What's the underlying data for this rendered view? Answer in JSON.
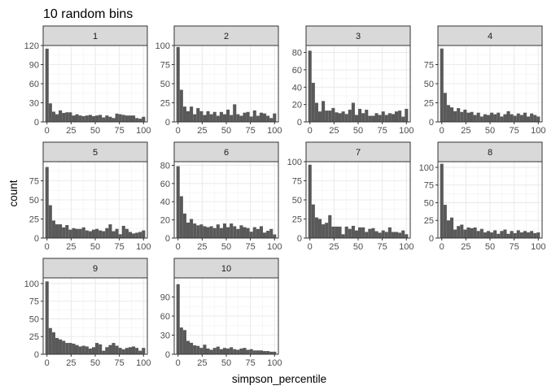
{
  "chart_data": {
    "type": "histogram",
    "title": "10 random bins",
    "xlabel": "simpson_percentile",
    "ylabel": "count",
    "xlim": [
      -4,
      104
    ],
    "x_ticks": [
      0,
      25,
      50,
      75,
      100
    ],
    "bin_width": 3.45,
    "bin_centers_start": 0,
    "bar_color": "#595959",
    "strip_color": "#d9d9d9",
    "grid": true,
    "layout": {
      "ncol": 4,
      "nrow": 3
    },
    "panels": [
      {
        "label": "1",
        "ylim": [
          0,
          120
        ],
        "y_ticks": [
          0,
          30,
          60,
          90,
          120
        ],
        "values": [
          115,
          29,
          16,
          12,
          18,
          14,
          15,
          15,
          10,
          12,
          10,
          9,
          10,
          11,
          9,
          10,
          11,
          7,
          10,
          8,
          6,
          13,
          12,
          11,
          10,
          10,
          10,
          6,
          5,
          8
        ]
      },
      {
        "label": "2",
        "ylim": [
          0,
          100
        ],
        "y_ticks": [
          0,
          25,
          50,
          75,
          100
        ],
        "values": [
          98,
          42,
          20,
          14,
          20,
          10,
          18,
          14,
          9,
          14,
          10,
          13,
          8,
          13,
          10,
          16,
          9,
          23,
          10,
          8,
          12,
          13,
          7,
          15,
          8,
          12,
          11,
          8,
          5,
          11
        ]
      },
      {
        "label": "3",
        "ylim": [
          0,
          88
        ],
        "y_ticks": [
          0,
          20,
          40,
          60,
          80
        ],
        "values": [
          82,
          45,
          22,
          12,
          24,
          13,
          13,
          16,
          11,
          10,
          12,
          9,
          14,
          22,
          8,
          15,
          10,
          14,
          7,
          7,
          10,
          8,
          12,
          8,
          10,
          9,
          12,
          13,
          6,
          15
        ]
      },
      {
        "label": "4",
        "ylim": [
          0,
          100
        ],
        "y_ticks": [
          0,
          25,
          50,
          75
        ],
        "values": [
          96,
          38,
          22,
          19,
          14,
          18,
          13,
          16,
          12,
          13,
          9,
          12,
          7,
          10,
          9,
          12,
          10,
          12,
          7,
          10,
          14,
          10,
          8,
          11,
          9,
          12,
          7,
          11,
          9,
          7
        ]
      },
      {
        "label": "5",
        "ylim": [
          0,
          100
        ],
        "y_ticks": [
          0,
          25,
          50,
          75
        ],
        "values": [
          93,
          43,
          23,
          18,
          18,
          14,
          17,
          11,
          13,
          12,
          12,
          14,
          10,
          9,
          11,
          12,
          10,
          9,
          13,
          18,
          9,
          12,
          5,
          16,
          12,
          8,
          6,
          7,
          8,
          10
        ]
      },
      {
        "label": "6",
        "ylim": [
          0,
          84
        ],
        "y_ticks": [
          0,
          20,
          40,
          60,
          80
        ],
        "values": [
          79,
          46,
          27,
          17,
          21,
          16,
          14,
          15,
          13,
          12,
          13,
          11,
          15,
          11,
          16,
          12,
          16,
          13,
          10,
          14,
          12,
          11,
          7,
          12,
          10,
          13,
          6,
          8,
          10,
          4
        ]
      },
      {
        "label": "7",
        "ylim": [
          0,
          100
        ],
        "y_ticks": [
          0,
          25,
          50,
          75,
          100
        ],
        "values": [
          96,
          44,
          27,
          25,
          18,
          20,
          30,
          15,
          15,
          15,
          5,
          15,
          12,
          16,
          10,
          14,
          14,
          8,
          12,
          13,
          9,
          7,
          10,
          8,
          14,
          8,
          8,
          7,
          10,
          5
        ]
      },
      {
        "label": "8",
        "ylim": [
          0,
          108
        ],
        "y_ticks": [
          0,
          25,
          50,
          75,
          100
        ],
        "values": [
          105,
          47,
          25,
          29,
          12,
          17,
          19,
          12,
          15,
          14,
          15,
          10,
          13,
          8,
          10,
          8,
          11,
          6,
          10,
          12,
          6,
          10,
          7,
          11,
          8,
          10,
          8,
          10,
          7,
          8
        ]
      },
      {
        "label": "9",
        "ylim": [
          0,
          108
        ],
        "y_ticks": [
          0,
          25,
          50,
          75,
          100
        ],
        "values": [
          103,
          37,
          31,
          23,
          21,
          19,
          16,
          16,
          15,
          13,
          11,
          12,
          11,
          8,
          10,
          16,
          14,
          5,
          10,
          13,
          16,
          12,
          9,
          7,
          9,
          10,
          11,
          9,
          5,
          9
        ]
      },
      {
        "label": "10",
        "ylim": [
          0,
          120
        ],
        "y_ticks": [
          0,
          30,
          60,
          90
        ],
        "values": [
          110,
          42,
          38,
          21,
          18,
          14,
          13,
          10,
          15,
          9,
          7,
          10,
          12,
          8,
          10,
          9,
          11,
          8,
          7,
          9,
          10,
          7,
          8,
          6,
          6,
          6,
          5,
          5,
          4,
          4
        ]
      }
    ]
  }
}
